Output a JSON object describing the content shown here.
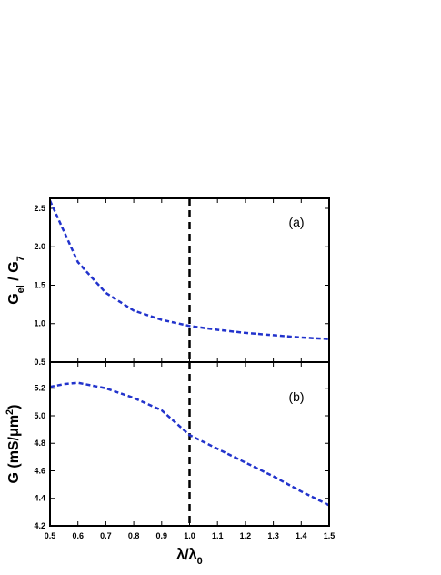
{
  "chart_data": [
    {
      "type": "line",
      "panel_label": "(a)",
      "ylabel": [
        {
          "text": "G"
        },
        {
          "text": "el",
          "sub": true
        },
        {
          "text": " / G"
        },
        {
          "text": "7",
          "sub": true
        }
      ],
      "x": [
        0.5,
        0.6,
        0.7,
        0.8,
        0.9,
        1.0,
        1.1,
        1.2,
        1.3,
        1.4,
        1.5
      ],
      "values": [
        2.6,
        1.8,
        1.4,
        1.17,
        1.05,
        0.97,
        0.92,
        0.88,
        0.85,
        0.82,
        0.8
      ],
      "color": "#2233cc",
      "dashed": true,
      "xlim": [
        0.5,
        1.5
      ],
      "xticks": [
        0.5,
        0.6,
        0.7,
        0.8,
        0.9,
        {
          "value": 1,
          "label": "1.0"
        },
        1.1,
        1.2,
        1.3,
        1.4,
        1.5
      ],
      "xtick_labels": false,
      "ylim": [
        0.5,
        2.63
      ],
      "yticks": [
        0.5,
        {
          "value": 1,
          "label": "1.0"
        },
        1.5,
        {
          "value": 2,
          "label": "2.0"
        },
        2.5
      ],
      "vline": 1
    },
    {
      "type": "line",
      "panel_label": "(b)",
      "ylabel": [
        {
          "text": "G (mS/μm"
        },
        {
          "text": "2",
          "sup": true
        },
        {
          "text": ")"
        }
      ],
      "xlabel": [
        {
          "text": "λ/λ"
        },
        {
          "text": "0",
          "sub": true
        }
      ],
      "x": [
        0.5,
        0.55,
        0.6,
        0.7,
        0.8,
        0.9,
        1.0,
        1.1,
        1.2,
        1.3,
        1.4,
        1.5
      ],
      "values": [
        5.21,
        5.23,
        5.24,
        5.2,
        5.13,
        5.04,
        4.86,
        4.76,
        4.66,
        4.56,
        4.45,
        4.35
      ],
      "color": "#2233cc",
      "dashed": true,
      "xlim": [
        0.5,
        1.5
      ],
      "xticks": [
        0.5,
        0.6,
        0.7,
        0.8,
        0.9,
        {
          "value": 1,
          "label": "1.0"
        },
        1.1,
        1.2,
        1.3,
        1.4,
        1.5
      ],
      "xtick_labels": true,
      "ylim": [
        4.2,
        5.39
      ],
      "yticks": [
        4.2,
        4.4,
        4.6,
        4.8,
        {
          "value": 5,
          "label": "5.0"
        },
        5.2
      ],
      "vline": 1
    }
  ]
}
